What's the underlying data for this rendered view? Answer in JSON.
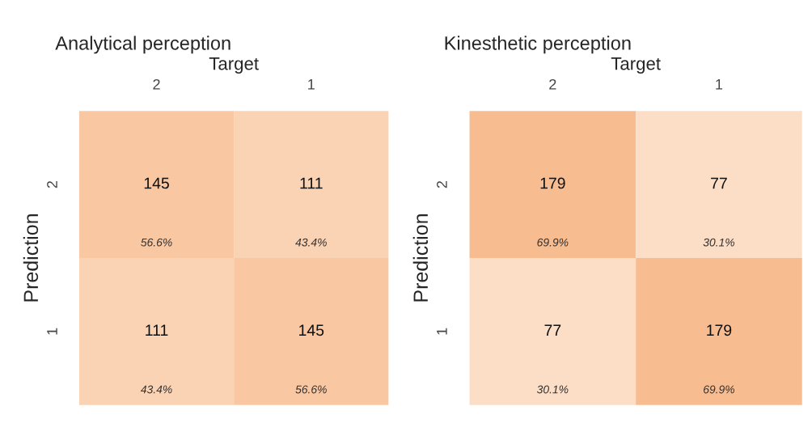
{
  "chart_data": [
    {
      "type": "heatmap",
      "title": "Analytical perception",
      "xlabel": "Target",
      "ylabel": "Prediction",
      "categories": [
        "2",
        "1"
      ],
      "y_categories": [
        "2",
        "1"
      ],
      "data_labels": true,
      "cells": [
        [
          145,
          111
        ],
        [
          111,
          145
        ]
      ],
      "annotations": [
        "56.6%",
        "43.4%",
        "43.4%",
        "56.6%"
      ]
    },
    {
      "type": "heatmap",
      "title": "Kinesthetic perception",
      "xlabel": "Target",
      "ylabel": "Prediction",
      "categories": [
        "2",
        "1"
      ],
      "y_categories": [
        "2",
        "1"
      ],
      "data_labels": true,
      "cells": [
        [
          179,
          77
        ],
        [
          77,
          179
        ]
      ],
      "annotations": [
        "69.9%",
        "30.1%",
        "30.1%",
        "69.9%"
      ]
    }
  ]
}
